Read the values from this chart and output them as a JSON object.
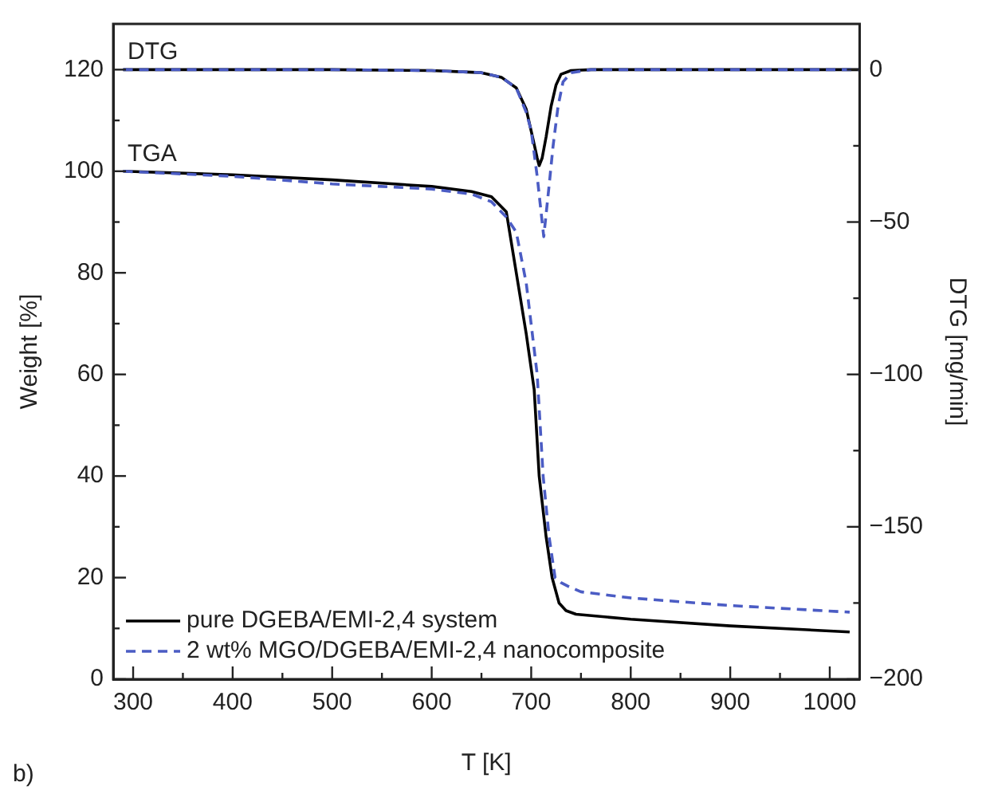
{
  "chart_data": {
    "type": "line",
    "xlabel": "T [K]",
    "ylabel": "Weight [%]",
    "y2label": "DTG [mg/min]",
    "annotations": [
      "DTG",
      "TGA",
      "b)"
    ],
    "xlim": [
      280,
      1030
    ],
    "ylim": [
      0,
      129
    ],
    "y2lim": [
      -200,
      15
    ],
    "xticks": [
      300,
      {
        "value": 350,
        "label": null
      },
      400,
      {
        "value": 450,
        "label": null
      },
      500,
      {
        "value": 550,
        "label": null
      },
      600,
      {
        "value": 650,
        "label": null
      },
      700,
      {
        "value": 750,
        "label": null
      },
      800,
      {
        "value": 850,
        "label": null
      },
      900,
      {
        "value": 950,
        "label": null
      },
      1000
    ],
    "yticks": [
      0,
      {
        "value": 10,
        "label": null
      },
      20,
      {
        "value": 30,
        "label": null
      },
      40,
      {
        "value": 50,
        "label": null
      },
      60,
      {
        "value": 70,
        "label": null
      },
      80,
      {
        "value": 90,
        "label": null
      },
      100,
      {
        "value": 110,
        "label": null
      },
      120
    ],
    "y2ticks": [
      {
        "value": -200,
        "label": "−200"
      },
      {
        "value": -175,
        "label": null
      },
      {
        "value": -150,
        "label": "−150"
      },
      {
        "value": -125,
        "label": null
      },
      {
        "value": -100,
        "label": "−100"
      },
      {
        "value": -75,
        "label": null
      },
      {
        "value": -50,
        "label": "−50"
      },
      {
        "value": -25,
        "label": null
      },
      0
    ],
    "grid": false,
    "legend": "bottom left",
    "marker": "none",
    "series": [
      {
        "name": "pure DGEBA/EMI-2,4 system",
        "color": "#000000",
        "line_style": "solid",
        "x": [
          290,
          400,
          500,
          600,
          640,
          660,
          675,
          685,
          695,
          703,
          708,
          715,
          721,
          728,
          735,
          745,
          800,
          900,
          1020
        ],
        "values": [
          100,
          99.3,
          98.3,
          97,
          96,
          95,
          92,
          80,
          68,
          57,
          40,
          28,
          20,
          15,
          13.5,
          12.8,
          11.8,
          10.5,
          9.3
        ]
      },
      {
        "name": "2 wt% MGO/DGEBA/EMI-2,4 nanocomposite",
        "color": "#4b5cc4",
        "line_style": "dashed",
        "x": [
          290,
          400,
          500,
          600,
          640,
          660,
          675,
          685,
          695,
          706,
          712,
          718,
          724,
          730,
          737,
          750,
          800,
          900,
          1020
        ],
        "values": [
          100,
          99,
          97.5,
          96.5,
          95.5,
          94,
          91,
          88,
          78,
          60,
          40,
          28,
          20,
          19,
          18.3,
          17.2,
          16,
          14.5,
          13.2
        ]
      },
      {
        "color": "#000000",
        "line_style": "solid",
        "axis": "y2",
        "x": [
          290,
          500,
          600,
          650,
          670,
          685,
          695,
          702,
          706,
          708,
          711,
          715,
          720,
          725,
          730,
          740,
          760,
          1030
        ],
        "values": [
          0,
          0,
          -0.3,
          -1,
          -2.5,
          -6,
          -13,
          -23,
          -29,
          -31.5,
          -29,
          -22,
          -12,
          -5,
          -1.5,
          -0.3,
          0,
          0
        ]
      },
      {
        "color": "#4b5cc4",
        "line_style": "dashed",
        "axis": "y2",
        "x": [
          290,
          500,
          600,
          650,
          670,
          685,
          695,
          700,
          706,
          712.6,
          718,
          722,
          727,
          732,
          740,
          760,
          1030
        ],
        "values": [
          0,
          0,
          -0.3,
          -1,
          -2.5,
          -6,
          -14,
          -20,
          -35,
          -54.8,
          -38,
          -25,
          -12,
          -4,
          -1,
          0,
          0
        ]
      }
    ]
  }
}
